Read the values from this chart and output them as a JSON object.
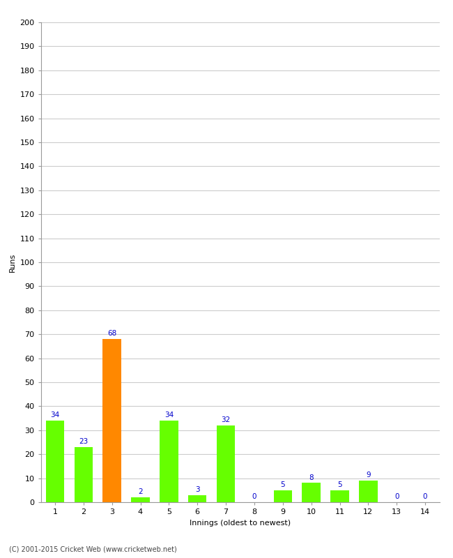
{
  "xlabel": "Innings (oldest to newest)",
  "ylabel": "Runs",
  "categories": [
    "1",
    "2",
    "3",
    "4",
    "5",
    "6",
    "7",
    "8",
    "9",
    "10",
    "11",
    "12",
    "13",
    "14"
  ],
  "values": [
    34,
    23,
    68,
    2,
    34,
    3,
    32,
    0,
    5,
    8,
    5,
    9,
    0,
    0
  ],
  "bar_colors": [
    "#66ff00",
    "#66ff00",
    "#ff8800",
    "#66ff00",
    "#66ff00",
    "#66ff00",
    "#66ff00",
    "#66ff00",
    "#66ff00",
    "#66ff00",
    "#66ff00",
    "#66ff00",
    "#66ff00",
    "#66ff00"
  ],
  "ylim": [
    0,
    200
  ],
  "yticks": [
    0,
    10,
    20,
    30,
    40,
    50,
    60,
    70,
    80,
    90,
    100,
    110,
    120,
    130,
    140,
    150,
    160,
    170,
    180,
    190,
    200
  ],
  "label_color": "#0000cc",
  "label_fontsize": 7.5,
  "axis_tick_fontsize": 8,
  "xlabel_fontsize": 8,
  "ylabel_fontsize": 8,
  "footer": "(C) 2001-2015 Cricket Web (www.cricketweb.net)",
  "footer_fontsize": 7,
  "background_color": "#ffffff",
  "grid_color": "#cccccc",
  "bar_width": 0.65
}
